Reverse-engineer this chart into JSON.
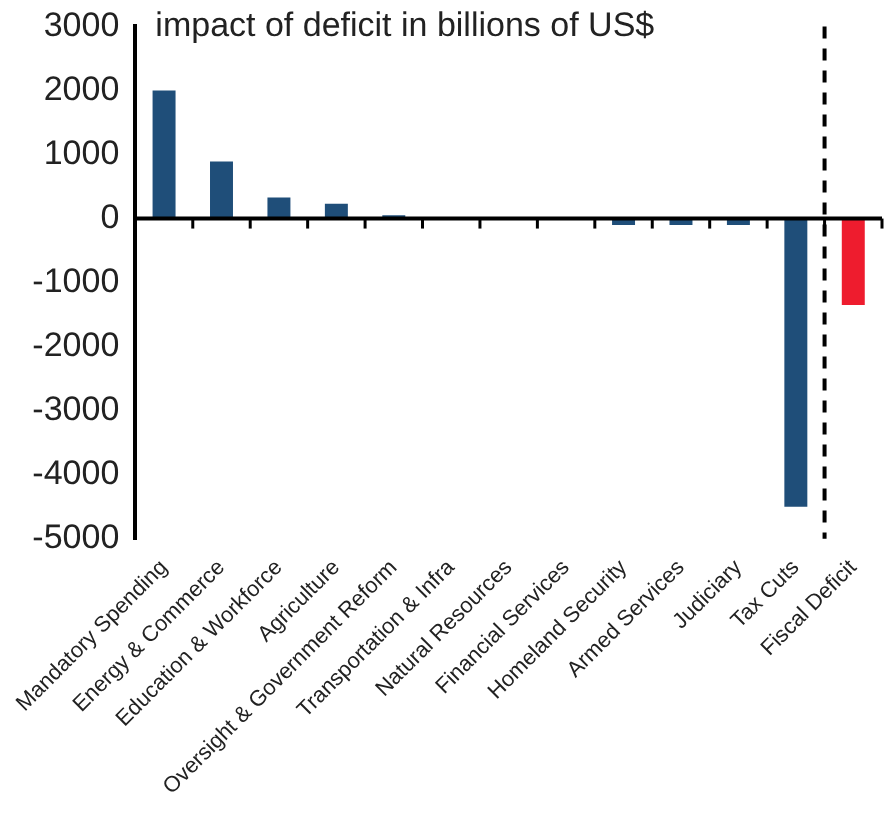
{
  "chart_data": {
    "type": "bar",
    "title": "impact of deficit in billions of US$",
    "categories": [
      "Mandatory Spending",
      "Energy & Commerce",
      "Education & Workforce",
      "Agriculture",
      "Oversight & Government Reform",
      "Transportation & Infra",
      "Natural Resources",
      "Financial Services",
      "Homeland Security",
      "Armed Services",
      "Judiciary",
      "Tax Cuts",
      "Fiscal Deficit"
    ],
    "values": [
      2000,
      890,
      330,
      230,
      50,
      20,
      20,
      20,
      -100,
      -100,
      -100,
      -4500,
      -1350
    ],
    "colors": [
      "#1f4e79",
      "#1f4e79",
      "#1f4e79",
      "#1f4e79",
      "#1f4e79",
      "#1f4e79",
      "#1f4e79",
      "#1f4e79",
      "#1f4e79",
      "#1f4e79",
      "#1f4e79",
      "#1f4e79",
      "#ee1c2e"
    ],
    "ylim": [
      -5000,
      3000
    ],
    "yticks": [
      -5000,
      -4000,
      -3000,
      -2000,
      -1000,
      0,
      1000,
      2000,
      3000
    ],
    "ref_lines": [
      {
        "axis": "x",
        "value": "Fiscal Deficit",
        "line_style": "dashed",
        "color": "#000000"
      }
    ],
    "grid": false,
    "legend": false
  }
}
